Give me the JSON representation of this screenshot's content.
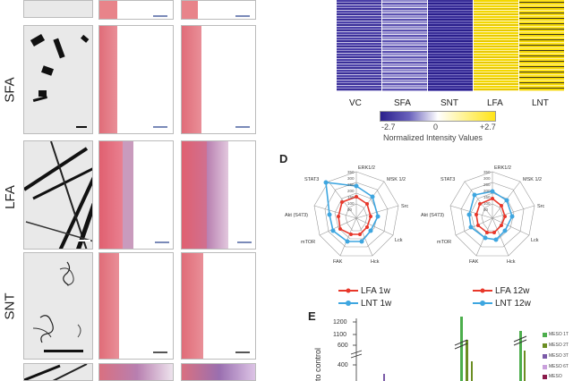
{
  "row_labels": [
    "SFA",
    "LFA",
    "SNT"
  ],
  "heatmap": {
    "columns": [
      "VC",
      "SFA",
      "SNT",
      "LFA",
      "LNT"
    ],
    "scale_min": "-2.7",
    "scale_mid": "0",
    "scale_max": "+2.7",
    "scale_caption": "Normalized Intensity Values",
    "colors": {
      "low": "#2a1f8c",
      "mid": "#ffffff",
      "high": "#ffe417"
    }
  },
  "panel_d": {
    "label": "D",
    "axes": [
      "ERK1/2",
      "MSK 1/2",
      "Src",
      "Lck",
      "Hck",
      "FAK",
      "mTOR",
      "Akt (S473)",
      "STAT3"
    ],
    "ticks": [
      "350",
      "300",
      "250",
      "200",
      "150",
      "100",
      "50"
    ],
    "left": {
      "series": [
        {
          "name": "LFA 1w",
          "color": "#e8372a"
        },
        {
          "name": "LNT 1w",
          "color": "#3ea6e0"
        }
      ]
    },
    "right": {
      "series": [
        {
          "name": "LFA 12w",
          "color": "#e8372a"
        },
        {
          "name": "LNT 12w",
          "color": "#3ea6e0"
        }
      ]
    }
  },
  "panel_e": {
    "label": "E",
    "y_ticks": [
      "1200",
      "1100",
      "600",
      "400"
    ],
    "y_label": "to control",
    "legend": [
      "MESO 1T",
      "MESO 2T",
      "MESO 3T",
      "MESO 6T",
      "MESO"
    ],
    "legend_colors": [
      "#4cae4c",
      "#6b8e23",
      "#7a5aa8",
      "#c9a0dc",
      "#8a1a4a"
    ]
  }
}
